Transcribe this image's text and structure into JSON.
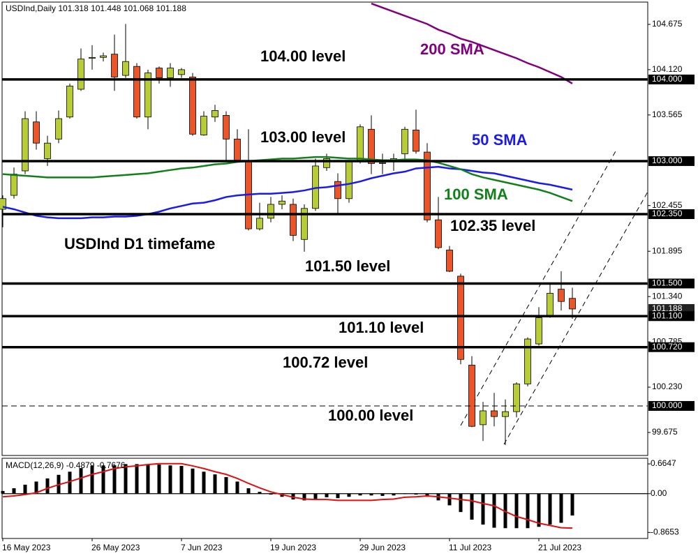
{
  "chart_data": [
    {
      "type": "candlestick",
      "title": "USDInd,Daily 101.318 101.448 101.068 101.188",
      "annotation": "USDInd D1 timefame",
      "categories": [
        "16 May 2023",
        null,
        null,
        null,
        null,
        null,
        null,
        null,
        "26 May 2023",
        null,
        null,
        null,
        null,
        null,
        null,
        null,
        "7 Jun 2023",
        null,
        null,
        null,
        null,
        null,
        null,
        null,
        "19 Jun 2023",
        null,
        null,
        null,
        null,
        null,
        null,
        null,
        "29 Jun 2023",
        null,
        null,
        null,
        null,
        null,
        null,
        null,
        "11 Jul 2023",
        null,
        null,
        null,
        null,
        null,
        null,
        null,
        "21 Jul 2023",
        null,
        null,
        null
      ],
      "open": [
        102.41,
        102.58,
        102.88,
        103.48,
        103.03,
        103.27,
        103.54,
        103.88,
        104.26,
        104.27,
        104.31,
        104.05,
        104.16,
        103.54,
        104.14,
        104.02,
        104.06,
        104.03,
        103.32,
        103.54,
        103.56,
        103.27,
        102.99,
        102.17,
        102.3,
        102.47,
        102.47,
        102.04,
        102.42,
        102.92,
        102.75,
        102.54,
        102.99,
        103.39,
        102.97,
        102.99,
        103.09,
        103.38,
        103.11,
        102.28,
        101.91,
        101.59,
        100.5,
        99.77,
        99.94,
        99.87,
        99.93,
        100.27,
        100.76,
        101.1,
        101.43,
        101.318
      ],
      "high": [
        102.58,
        102.92,
        103.61,
        103.61,
        103.31,
        103.62,
        103.95,
        104.38,
        104.42,
        104.33,
        104.55,
        104.68,
        104.2,
        104.12,
        104.16,
        104.2,
        104.14,
        104.08,
        103.61,
        103.69,
        103.61,
        103.39,
        103.39,
        102.49,
        102.56,
        102.58,
        102.54,
        102.47,
        103.03,
        103.09,
        102.85,
        103.01,
        103.45,
        103.56,
        103.09,
        103.09,
        103.42,
        103.63,
        103.22,
        102.56,
        101.96,
        101.62,
        100.61,
        100.05,
        100.16,
        100.08,
        100.29,
        100.84,
        101.21,
        101.51,
        101.65,
        101.448
      ],
      "low": [
        102.19,
        102.54,
        102.84,
        103.14,
        102.94,
        103.22,
        103.52,
        103.86,
        104.12,
        104.22,
        103.86,
        104.02,
        103.52,
        103.39,
        103.95,
        103.91,
        104.02,
        103.31,
        103.31,
        103.48,
        103.01,
        102.99,
        102.15,
        102.15,
        102.25,
        102.41,
        102.02,
        101.89,
        102.39,
        102.88,
        102.36,
        102.49,
        102.97,
        102.84,
        102.84,
        102.88,
        103.01,
        103.09,
        102.25,
        101.92,
        101.64,
        100.51,
        99.74,
        99.57,
        99.75,
        99.52,
        99.86,
        100.24,
        100.74,
        101.08,
        101.17,
        101.068
      ],
      "close": [
        102.54,
        102.84,
        103.52,
        103.22,
        103.22,
        103.52,
        103.92,
        104.25,
        104.27,
        104.29,
        104.03,
        104.22,
        103.54,
        104.08,
        104.02,
        104.14,
        104.12,
        103.33,
        103.55,
        103.62,
        103.27,
        103.01,
        102.17,
        102.3,
        102.47,
        102.51,
        102.09,
        102.42,
        102.94,
        103.03,
        102.54,
        102.99,
        103.42,
        102.97,
        102.98,
        103.03,
        103.39,
        103.12,
        102.28,
        101.94,
        101.65,
        100.57,
        99.75,
        99.94,
        99.87,
        99.93,
        100.27,
        100.82,
        101.08,
        101.38,
        101.28,
        101.188
      ],
      "up_color": "#b8cc3a",
      "down_color": "#e8562a",
      "series": [
        {
          "name": "200 SMA",
          "color": "#800080",
          "values": [
            null,
            null,
            null,
            null,
            null,
            null,
            null,
            null,
            null,
            null,
            null,
            null,
            null,
            null,
            null,
            null,
            null,
            null,
            null,
            null,
            null,
            null,
            null,
            null,
            null,
            null,
            null,
            null,
            null,
            null,
            null,
            null,
            null,
            104.93,
            104.88,
            104.83,
            104.78,
            104.73,
            104.68,
            104.61,
            104.56,
            104.5,
            104.46,
            104.41,
            104.36,
            104.31,
            104.26,
            104.2,
            104.15,
            104.09,
            104.03,
            103.95
          ]
        },
        {
          "name": "50 SMA",
          "color": "#1a1aee",
          "values": [
            102.44,
            102.41,
            102.37,
            102.33,
            102.31,
            102.3,
            102.3,
            102.3,
            102.31,
            102.31,
            102.32,
            102.32,
            102.33,
            102.35,
            102.38,
            102.42,
            102.45,
            102.48,
            102.49,
            102.52,
            102.56,
            102.58,
            102.59,
            102.6,
            102.6,
            102.61,
            102.62,
            102.64,
            102.67,
            102.68,
            102.7,
            102.72,
            102.75,
            102.79,
            102.82,
            102.85,
            102.87,
            102.91,
            102.92,
            102.93,
            102.91,
            102.9,
            102.88,
            102.86,
            102.85,
            102.82,
            102.79,
            102.76,
            102.73,
            102.71,
            102.68,
            102.65
          ]
        },
        {
          "name": "100 SMA",
          "color": "#12801a",
          "values": [
            102.84,
            102.83,
            102.82,
            102.81,
            102.8,
            102.8,
            102.8,
            102.8,
            102.8,
            102.81,
            102.82,
            102.83,
            102.84,
            102.85,
            102.87,
            102.89,
            102.91,
            102.92,
            102.94,
            102.96,
            102.97,
            102.99,
            103.0,
            103.01,
            103.02,
            103.03,
            103.03,
            103.04,
            103.05,
            103.05,
            103.04,
            103.03,
            103.03,
            103.02,
            103.01,
            103.01,
            103.02,
            103.02,
            103.01,
            102.98,
            102.94,
            102.9,
            102.84,
            102.8,
            102.77,
            102.74,
            102.71,
            102.68,
            102.65,
            102.61,
            102.56,
            102.51
          ]
        }
      ],
      "levels": [
        {
          "value": 104.0,
          "label": "104.000",
          "text": "104.00 level",
          "style": "solid"
        },
        {
          "value": 103.0,
          "label": "103.000",
          "text": "103.00 level",
          "style": "solid"
        },
        {
          "value": 102.35,
          "label": "102.350",
          "text": "102.35 level",
          "style": "solid"
        },
        {
          "value": 101.5,
          "label": "101.500",
          "text": "101.50 level",
          "style": "solid"
        },
        {
          "value": 101.1,
          "label": "101.100",
          "text": "101.10 level",
          "style": "solid"
        },
        {
          "value": 100.72,
          "label": "100.720",
          "text": "100.72 level",
          "style": "solid"
        },
        {
          "value": 100.0,
          "label": "100.000",
          "text": "100.00 level",
          "style": "dashed"
        }
      ],
      "last_price": {
        "value": 101.188,
        "label": "101.188"
      },
      "ylim": [
        99.393,
        104.948
      ],
      "yticks": [
        104.675,
        {
          "value": 104.12,
          "label": "104.120"
        },
        103.565,
        102.455,
        101.895,
        {
          "value": 101.34,
          "label": "101.340"
        },
        100.785,
        {
          "value": 100.23,
          "label": "100.230"
        },
        99.675
      ]
    },
    {
      "type": "macd",
      "title": "MACD(12,26,9) -0.4879 -0.7676",
      "series": [
        {
          "kind": "histogram",
          "color": "#000000",
          "values": [
            0.06,
            0.12,
            0.2,
            0.27,
            0.34,
            0.42,
            0.49,
            0.57,
            0.62,
            0.63,
            0.63,
            0.66,
            0.66,
            0.65,
            0.65,
            0.63,
            0.62,
            0.56,
            0.49,
            0.43,
            0.37,
            0.27,
            0.12,
            0.04,
            -0.02,
            -0.07,
            -0.13,
            -0.15,
            -0.13,
            -0.08,
            -0.1,
            -0.07,
            -0.04,
            -0.04,
            -0.05,
            -0.04,
            -0.01,
            -0.02,
            -0.07,
            -0.15,
            -0.26,
            -0.41,
            -0.58,
            -0.69,
            -0.76,
            -0.77,
            -0.77,
            -0.77,
            -0.74,
            -0.69,
            -0.65,
            -0.4879
          ]
        },
        {
          "kind": "line",
          "color": "#e01010",
          "values": [
            -0.07,
            -0.05,
            -0.02,
            0.02,
            0.12,
            0.2,
            0.27,
            0.35,
            0.43,
            0.49,
            0.56,
            0.6,
            0.62,
            0.65,
            0.67,
            0.67,
            0.67,
            0.62,
            0.56,
            0.49,
            0.43,
            0.34,
            0.23,
            0.13,
            0.04,
            -0.02,
            -0.08,
            -0.12,
            -0.13,
            -0.13,
            -0.15,
            -0.15,
            -0.15,
            -0.15,
            -0.13,
            -0.12,
            -0.08,
            -0.07,
            -0.05,
            -0.07,
            -0.1,
            -0.13,
            -0.16,
            -0.22,
            -0.27,
            -0.4,
            -0.51,
            -0.58,
            -0.66,
            -0.71,
            -0.76,
            -0.7676
          ]
        }
      ],
      "ylim": [
        -1.0,
        0.79
      ],
      "yticks": [
        0.6647,
        {
          "value": 0,
          "label": "0.00"
        },
        -0.8653
      ]
    }
  ]
}
